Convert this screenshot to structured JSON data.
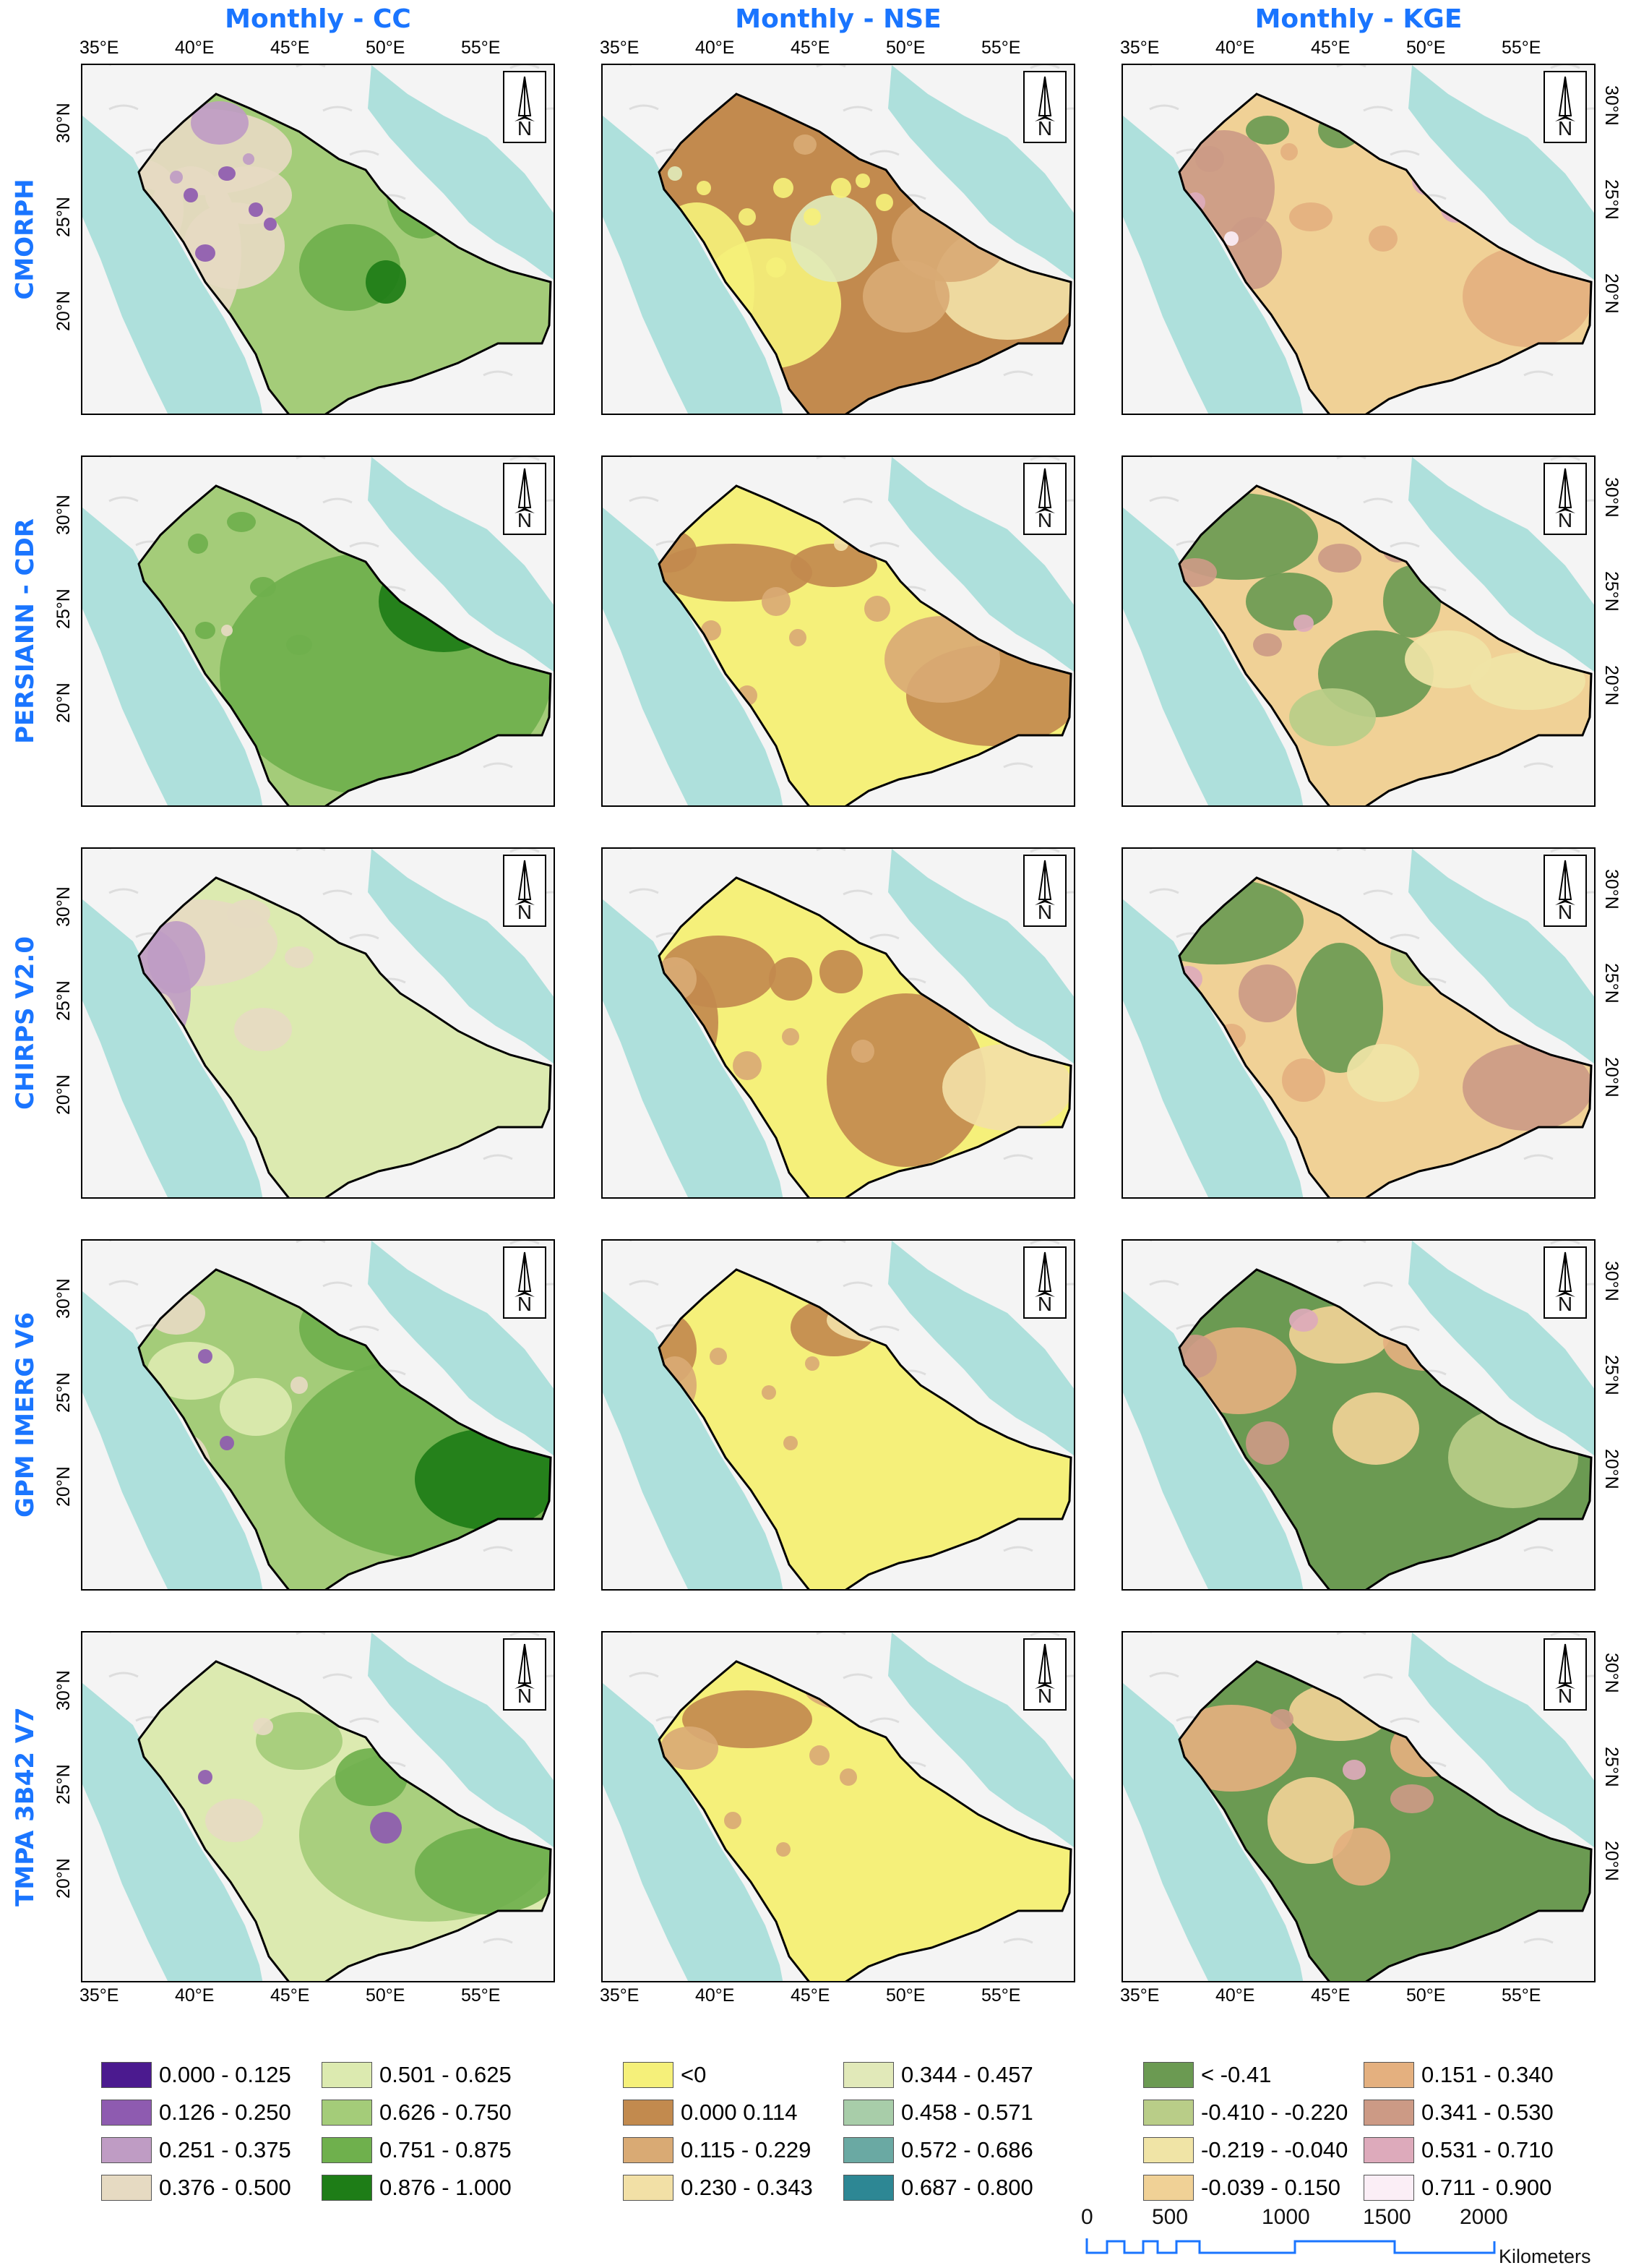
{
  "columns": [
    "Monthly - CC",
    "Monthly - NSE",
    "Monthly - KGE"
  ],
  "rows": [
    "CMORPH",
    "PERSIANN - CDR",
    "CHIRPS V2.0",
    "GPM IMERG V6",
    "TMPA 3B42 V7"
  ],
  "lon_ticks": [
    "35°E",
    "40°E",
    "45°E",
    "50°E",
    "55°E"
  ],
  "lat_ticks": [
    "30°N",
    "25°N",
    "20°N"
  ],
  "north_label": "N",
  "legends": {
    "cc": [
      {
        "label": "0.000 - 0.125",
        "color": "#4b1a8f"
      },
      {
        "label": "0.126 - 0.250",
        "color": "#8e5bb0"
      },
      {
        "label": "0.251 - 0.375",
        "color": "#bf9cc4"
      },
      {
        "label": "0.376 - 0.500",
        "color": "#e6dac2"
      },
      {
        "label": "0.501 - 0.625",
        "color": "#dceab0"
      },
      {
        "label": "0.626 - 0.750",
        "color": "#a4cc79"
      },
      {
        "label": "0.751 - 0.875",
        "color": "#6fb04d"
      },
      {
        "label": "0.876 - 1.000",
        "color": "#1e7d17"
      }
    ],
    "nse": [
      {
        "label": "<0",
        "color": "#f5f07a"
      },
      {
        "label": "0.000 0.114",
        "color": "#c28a4e"
      },
      {
        "label": "0.115 - 0.229",
        "color": "#d9aa74"
      },
      {
        "label": "0.230 - 0.343",
        "color": "#f2e0a6"
      },
      {
        "label": "0.344 - 0.457",
        "color": "#e1e9b9"
      },
      {
        "label": "0.458 - 0.571",
        "color": "#a8cda9"
      },
      {
        "label": "0.572 - 0.686",
        "color": "#6aa9a3"
      },
      {
        "label": "0.687 - 0.800",
        "color": "#2d8794"
      }
    ],
    "kge": [
      {
        "label": "< -0.41",
        "color": "#6b9a52"
      },
      {
        "label": "-0.410 - -0.220",
        "color": "#b9cd88"
      },
      {
        "label": "-0.219 - -0.040",
        "color": "#f0e4a6"
      },
      {
        "label": "-0.039 - 0.150",
        "color": "#f0d196"
      },
      {
        "label": "0.151 - 0.340",
        "color": "#e4b07f"
      },
      {
        "label": "0.341 - 0.530",
        "color": "#cc9a85"
      },
      {
        "label": "0.531 - 0.710",
        "color": "#ddaabb"
      },
      {
        "label": "0.711 - 0.900",
        "color": "#fbeef6"
      }
    ]
  },
  "scale_bar": {
    "ticks": [
      "0",
      "500",
      "1000",
      "1500",
      "2000"
    ],
    "unit": "Kilometers",
    "color": "#1a75ff"
  },
  "colors": {
    "title_blue": "#1a75ff",
    "sea": "#aee0dc",
    "land_bg": "#f4f4f4"
  }
}
